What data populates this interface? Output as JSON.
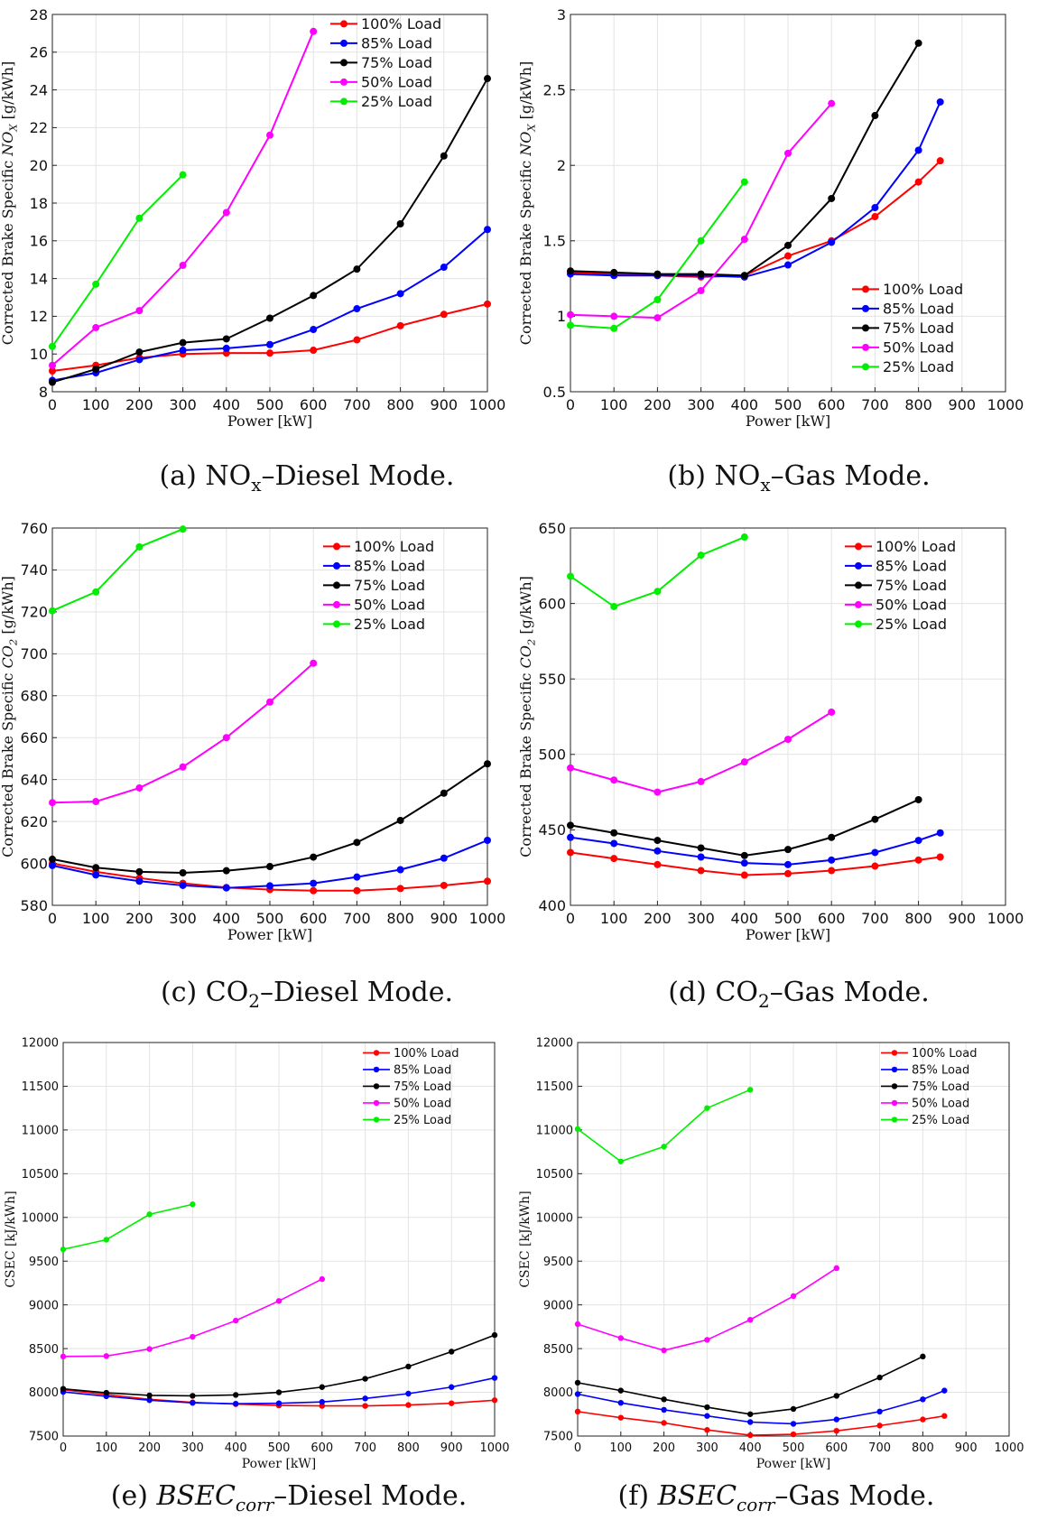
{
  "colors": {
    "100": "#ff0000",
    "85": "#0000ff",
    "75": "#000000",
    "50": "#ff00ff",
    "25": "#00ee00"
  },
  "legend_labels": [
    "100% Load",
    "85% Load",
    "75% Load",
    "50% Load",
    "25% Load"
  ],
  "captions": {
    "a": {
      "prefix": "(a) NO",
      "sub": "x",
      "suffix": "–Diesel Mode."
    },
    "b": {
      "prefix": "(b) NO",
      "sub": "x",
      "suffix": "–Gas Mode."
    },
    "c": {
      "prefix": "(c) CO",
      "sub": "2",
      "suffix": "–Diesel Mode."
    },
    "d": {
      "prefix": "(d) CO",
      "sub": "2",
      "suffix": "–Gas Mode."
    },
    "e": {
      "prefix": "(e) ",
      "italic": "BSEC",
      "sub": "corr",
      "suffix": "–Diesel Mode."
    },
    "f": {
      "prefix": "(f) ",
      "italic": "BSEC",
      "sub": "corr",
      "suffix": "–Gas Mode."
    }
  },
  "chart_data": [
    {
      "id": "a",
      "type": "line",
      "xlabel": "Power [kW]",
      "ylabel": "Corrected Brake Specific NO_X [g/kWh]",
      "xlim": [
        0,
        1000
      ],
      "ylim": [
        8,
        28
      ],
      "xticks": [
        "0",
        "100",
        "200",
        "300",
        "400",
        "500",
        "600",
        "700",
        "800",
        "900",
        "1000"
      ],
      "yticks": [
        "8",
        "10",
        "12",
        "14",
        "16",
        "18",
        "20",
        "22",
        "24",
        "26",
        "28"
      ],
      "grid": true,
      "legend": "top-right",
      "series": [
        {
          "name": "100% Load",
          "key": "100",
          "x": [
            0,
            100,
            200,
            300,
            400,
            500,
            600,
            700,
            800,
            900,
            1000
          ],
          "y": [
            9.1,
            9.4,
            9.8,
            10.0,
            10.05,
            10.05,
            10.2,
            10.75,
            11.5,
            12.1,
            12.65
          ]
        },
        {
          "name": "85% Load",
          "key": "85",
          "x": [
            0,
            100,
            200,
            300,
            400,
            500,
            600,
            700,
            800,
            900,
            1000
          ],
          "y": [
            8.6,
            9.0,
            9.7,
            10.2,
            10.3,
            10.5,
            11.3,
            12.4,
            13.2,
            14.6,
            16.6
          ]
        },
        {
          "name": "75% Load",
          "key": "75",
          "x": [
            0,
            100,
            200,
            300,
            400,
            500,
            600,
            700,
            800,
            900,
            1000
          ],
          "y": [
            8.5,
            9.2,
            10.1,
            10.6,
            10.8,
            11.9,
            13.1,
            14.5,
            16.9,
            20.5,
            24.6
          ]
        },
        {
          "name": "50% Load",
          "key": "50",
          "x": [
            0,
            100,
            200,
            300,
            400,
            500,
            600
          ],
          "y": [
            9.4,
            11.4,
            12.3,
            14.7,
            17.5,
            21.6,
            27.1
          ]
        },
        {
          "name": "25% Load",
          "key": "25",
          "x": [
            0,
            100,
            200,
            300
          ],
          "y": [
            10.4,
            13.7,
            17.2,
            19.5
          ]
        }
      ]
    },
    {
      "id": "b",
      "type": "line",
      "xlabel": "Power [kW]",
      "ylabel": "Corrected Brake Specific NO_X [g/kWh]",
      "xlim": [
        0,
        1000
      ],
      "ylim": [
        0.5,
        3
      ],
      "xticks": [
        "0",
        "100",
        "200",
        "300",
        "400",
        "500",
        "600",
        "700",
        "800",
        "900",
        "1000"
      ],
      "yticks": [
        "0.5",
        "1",
        "1.5",
        "2",
        "2.5",
        "3"
      ],
      "grid": true,
      "legend": "bottom-right",
      "series": [
        {
          "name": "100% Load",
          "key": "100",
          "x": [
            0,
            100,
            200,
            300,
            400,
            500,
            600,
            700,
            800,
            850
          ],
          "y": [
            1.29,
            1.28,
            1.27,
            1.26,
            1.27,
            1.4,
            1.5,
            1.66,
            1.89,
            2.03
          ]
        },
        {
          "name": "85% Load",
          "key": "85",
          "x": [
            0,
            100,
            200,
            300,
            400,
            500,
            600,
            700,
            800,
            850
          ],
          "y": [
            1.28,
            1.27,
            1.27,
            1.27,
            1.26,
            1.34,
            1.49,
            1.72,
            2.1,
            2.42
          ]
        },
        {
          "name": "75% Load",
          "key": "75",
          "x": [
            0,
            100,
            200,
            300,
            400,
            500,
            600,
            700,
            800
          ],
          "y": [
            1.3,
            1.29,
            1.28,
            1.28,
            1.27,
            1.47,
            1.78,
            2.33,
            2.81
          ]
        },
        {
          "name": "50% Load",
          "key": "50",
          "x": [
            0,
            100,
            200,
            300,
            400,
            500,
            600
          ],
          "y": [
            1.01,
            1.0,
            0.99,
            1.17,
            1.51,
            2.08,
            2.41
          ]
        },
        {
          "name": "25% Load",
          "key": "25",
          "x": [
            0,
            100,
            200,
            300,
            400
          ],
          "y": [
            0.94,
            0.92,
            1.11,
            1.5,
            1.89
          ]
        }
      ]
    },
    {
      "id": "c",
      "type": "line",
      "xlabel": "Power [kW]",
      "ylabel": "Corrected Brake Specific CO_2 [g/kWh]",
      "xlim": [
        0,
        1000
      ],
      "ylim": [
        580,
        760
      ],
      "xticks": [
        "0",
        "100",
        "200",
        "300",
        "400",
        "500",
        "600",
        "700",
        "800",
        "900",
        "1000"
      ],
      "yticks": [
        "580",
        "600",
        "620",
        "640",
        "660",
        "680",
        "700",
        "720",
        "740",
        "760"
      ],
      "grid": true,
      "legend": "top-right",
      "series": [
        {
          "name": "100% Load",
          "key": "100",
          "x": [
            0,
            100,
            200,
            300,
            400,
            500,
            600,
            700,
            800,
            900,
            1000
          ],
          "y": [
            600,
            596,
            593,
            590.5,
            588.5,
            587.5,
            587,
            587,
            588,
            589.5,
            591.5
          ]
        },
        {
          "name": "85% Load",
          "key": "85",
          "x": [
            0,
            100,
            200,
            300,
            400,
            500,
            600,
            700,
            800,
            900,
            1000
          ],
          "y": [
            599,
            594.5,
            591.5,
            589.5,
            588.3,
            589.3,
            590.5,
            593.5,
            597,
            602.5,
            611
          ]
        },
        {
          "name": "75% Load",
          "key": "75",
          "x": [
            0,
            100,
            200,
            300,
            400,
            500,
            600,
            700,
            800,
            900,
            1000
          ],
          "y": [
            602,
            598,
            596,
            595.5,
            596.5,
            598.5,
            603,
            610,
            620.5,
            633.5,
            647.5
          ]
        },
        {
          "name": "50% Load",
          "key": "50",
          "x": [
            0,
            100,
            200,
            300,
            400,
            500,
            600
          ],
          "y": [
            629,
            629.5,
            636,
            646,
            660,
            677,
            695.5
          ]
        },
        {
          "name": "25% Load",
          "key": "25",
          "x": [
            0,
            100,
            200,
            300
          ],
          "y": [
            720.5,
            729.5,
            751,
            759.5
          ]
        }
      ]
    },
    {
      "id": "d",
      "type": "line",
      "xlabel": "Power [kW]",
      "ylabel": "Corrected Brake Specific CO_2 [g/kWh]",
      "xlim": [
        0,
        1000
      ],
      "ylim": [
        400,
        650
      ],
      "xticks": [
        "0",
        "100",
        "200",
        "300",
        "400",
        "500",
        "600",
        "700",
        "800",
        "900",
        "1000"
      ],
      "yticks": [
        "400",
        "450",
        "500",
        "550",
        "600",
        "650"
      ],
      "grid": true,
      "legend": "top-right",
      "series": [
        {
          "name": "100% Load",
          "key": "100",
          "x": [
            0,
            100,
            200,
            300,
            400,
            500,
            600,
            700,
            800,
            850
          ],
          "y": [
            435,
            431,
            427,
            423,
            420,
            421,
            423,
            426,
            430,
            432
          ]
        },
        {
          "name": "85% Load",
          "key": "85",
          "x": [
            0,
            100,
            200,
            300,
            400,
            500,
            600,
            700,
            800,
            850
          ],
          "y": [
            445,
            441,
            436,
            432,
            428,
            427,
            430,
            435,
            443,
            448
          ]
        },
        {
          "name": "75% Load",
          "key": "75",
          "x": [
            0,
            100,
            200,
            300,
            400,
            500,
            600,
            700,
            800
          ],
          "y": [
            453,
            448,
            443,
            438,
            433,
            437,
            445,
            457,
            470
          ]
        },
        {
          "name": "50% Load",
          "key": "50",
          "x": [
            0,
            100,
            200,
            300,
            400,
            500,
            600
          ],
          "y": [
            491,
            483,
            475,
            482,
            495,
            510,
            528
          ]
        },
        {
          "name": "25% Load",
          "key": "25",
          "x": [
            0,
            100,
            200,
            300,
            400
          ],
          "y": [
            618,
            598,
            608,
            632,
            644
          ]
        }
      ]
    },
    {
      "id": "e",
      "type": "line",
      "xlabel": "Power [kW]",
      "ylabel": "CSEC [kJ/kWh]",
      "xlim": [
        0,
        1000
      ],
      "ylim": [
        7500,
        12000
      ],
      "xticks": [
        "0",
        "100",
        "200",
        "300",
        "400",
        "500",
        "600",
        "700",
        "800",
        "900",
        "1000"
      ],
      "yticks": [
        "7500",
        "8000",
        "8500",
        "9000",
        "9500",
        "10000",
        "10500",
        "11000",
        "11500",
        "12000"
      ],
      "grid": true,
      "legend": "top-right",
      "series": [
        {
          "name": "100% Load",
          "key": "100",
          "x": [
            0,
            100,
            200,
            300,
            400,
            500,
            600,
            700,
            800,
            900,
            1000
          ],
          "y": [
            8030,
            7975,
            7920,
            7885,
            7865,
            7850,
            7845,
            7845,
            7855,
            7875,
            7910
          ]
        },
        {
          "name": "85% Load",
          "key": "85",
          "x": [
            0,
            100,
            200,
            300,
            400,
            500,
            600,
            700,
            800,
            900,
            1000
          ],
          "y": [
            8005,
            7955,
            7910,
            7880,
            7870,
            7875,
            7890,
            7930,
            7985,
            8060,
            8165
          ]
        },
        {
          "name": "75% Load",
          "key": "75",
          "x": [
            0,
            100,
            200,
            300,
            400,
            500,
            600,
            700,
            800,
            900,
            1000
          ],
          "y": [
            8040,
            7995,
            7965,
            7960,
            7970,
            8000,
            8060,
            8155,
            8295,
            8465,
            8655
          ]
        },
        {
          "name": "50% Load",
          "key": "50",
          "x": [
            0,
            100,
            200,
            300,
            400,
            500,
            600
          ],
          "y": [
            8410,
            8415,
            8495,
            8635,
            8820,
            9045,
            9295
          ]
        },
        {
          "name": "25% Load",
          "key": "25",
          "x": [
            0,
            100,
            200,
            300
          ],
          "y": [
            9635,
            9745,
            10035,
            10150
          ]
        }
      ]
    },
    {
      "id": "f",
      "type": "line",
      "xlabel": "Power [kW]",
      "ylabel": "CSEC [kJ/kWh]",
      "xlim": [
        0,
        1000
      ],
      "ylim": [
        7500,
        12000
      ],
      "xticks": [
        "0",
        "100",
        "200",
        "300",
        "400",
        "500",
        "600",
        "700",
        "800",
        "900",
        "1000"
      ],
      "yticks": [
        "7500",
        "8000",
        "8500",
        "9000",
        "9500",
        "10000",
        "10500",
        "11000",
        "11500",
        "12000"
      ],
      "grid": true,
      "legend": "top-right",
      "series": [
        {
          "name": "100% Load",
          "key": "100",
          "x": [
            0,
            100,
            200,
            300,
            400,
            500,
            600,
            700,
            800,
            850
          ],
          "y": [
            7780,
            7710,
            7650,
            7570,
            7510,
            7520,
            7560,
            7620,
            7690,
            7730
          ]
        },
        {
          "name": "85% Load",
          "key": "85",
          "x": [
            0,
            100,
            200,
            300,
            400,
            500,
            600,
            700,
            800,
            850
          ],
          "y": [
            7980,
            7880,
            7800,
            7730,
            7660,
            7640,
            7690,
            7780,
            7920,
            8020
          ]
        },
        {
          "name": "75% Load",
          "key": "75",
          "x": [
            0,
            100,
            200,
            300,
            400,
            500,
            600,
            700,
            800
          ],
          "y": [
            8110,
            8020,
            7920,
            7830,
            7750,
            7810,
            7960,
            8170,
            8410
          ]
        },
        {
          "name": "50% Load",
          "key": "50",
          "x": [
            0,
            100,
            200,
            300,
            400,
            500,
            600
          ],
          "y": [
            8780,
            8620,
            8480,
            8600,
            8830,
            9100,
            9420
          ]
        },
        {
          "name": "25% Load",
          "key": "25",
          "x": [
            0,
            100,
            200,
            300,
            400
          ],
          "y": [
            11010,
            10640,
            10810,
            11250,
            11460
          ]
        }
      ]
    }
  ]
}
